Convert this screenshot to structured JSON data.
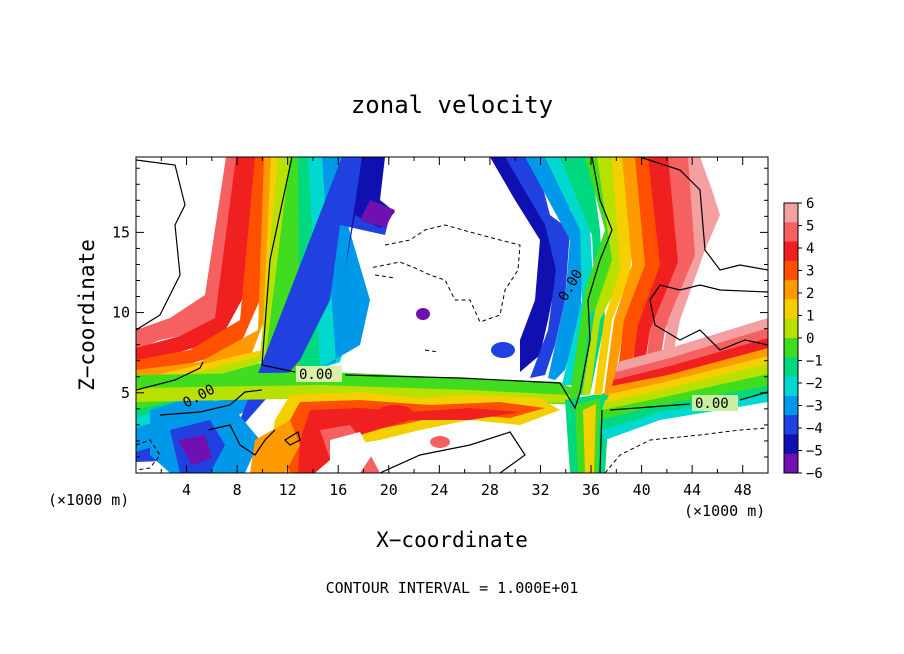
{
  "chart_data": {
    "type": "heatmap",
    "title": "zonal velocity",
    "xlabel": "X−coordinate",
    "ylabel": "Z−coordinate",
    "x_unit_left": "(×1000 m)",
    "x_unit_right": "(×1000 m)",
    "x_ticks": [
      "4",
      "8",
      "12",
      "16",
      "20",
      "24",
      "28",
      "32",
      "36",
      "40",
      "44",
      "48"
    ],
    "y_ticks": [
      "5",
      "10",
      "15"
    ],
    "xlim": [
      0,
      50
    ],
    "ylim": [
      0,
      19.7
    ],
    "colorbar": {
      "labels": [
        "6",
        "5",
        "4",
        "3",
        "2",
        "1",
        "0",
        "−1",
        "−2",
        "−3",
        "−4",
        "−5",
        "−6"
      ],
      "colors": [
        "#f5a0a0",
        "#f56060",
        "#f02020",
        "#ff5000",
        "#ff9a00",
        "#f5d000",
        "#b8e000",
        "#40dc20",
        "#00d880",
        "#00d8d0",
        "#0098e8",
        "#2040e0",
        "#1010b0",
        "#7010b0"
      ]
    },
    "contour_labels": [
      "0.00",
      "0.00",
      "0.00",
      "0.00"
    ],
    "annotation": "CONTOUR INTERVAL = 1.000E+01"
  }
}
